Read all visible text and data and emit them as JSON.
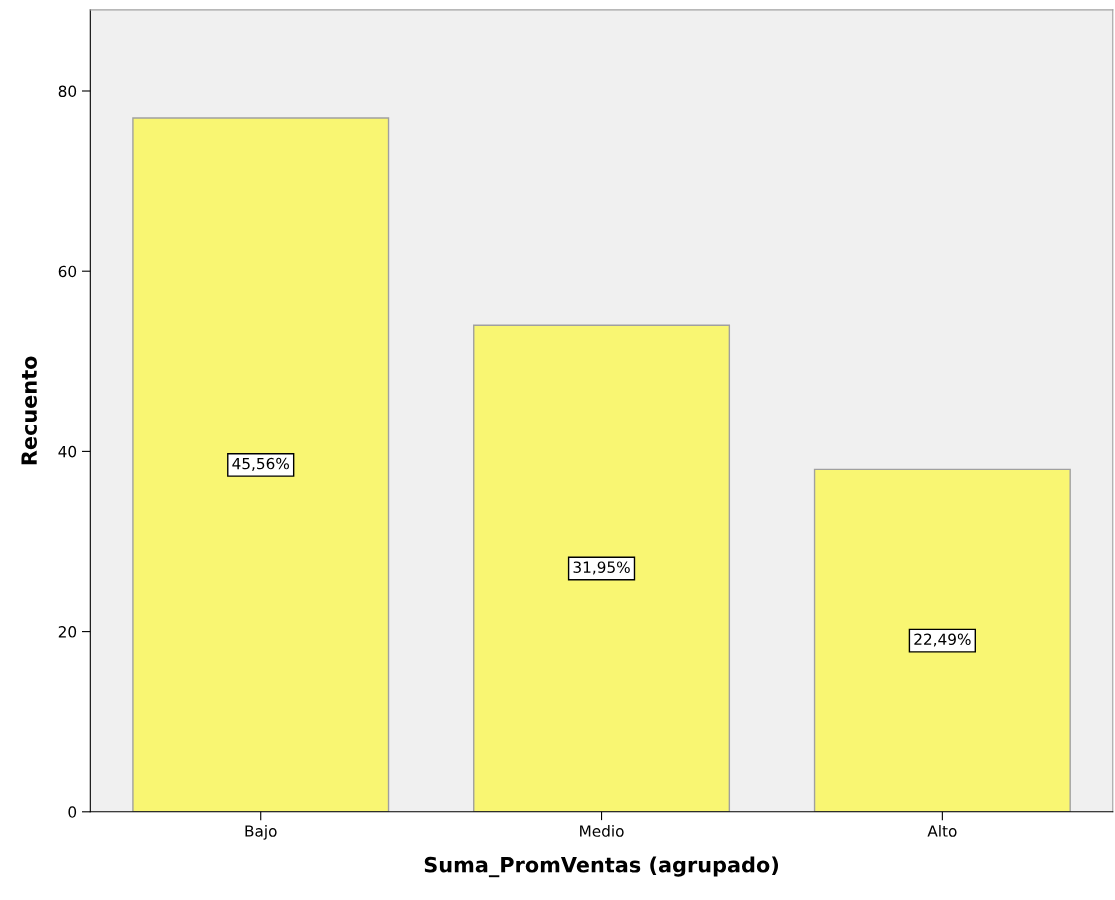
{
  "chart_data": {
    "type": "bar",
    "xlabel": "Suma_PromVentas (agrupado)",
    "ylabel": "Recuento",
    "categories": [
      "Bajo",
      "Medio",
      "Alto"
    ],
    "values": [
      77,
      54,
      38
    ],
    "annotations": [
      "45,56%",
      "31,95%",
      "22,49%"
    ],
    "color": "#f9f672",
    "ylim": [
      0,
      89
    ],
    "yticks": [
      0,
      20,
      40,
      60,
      80
    ],
    "grid": false,
    "legend": false
  }
}
